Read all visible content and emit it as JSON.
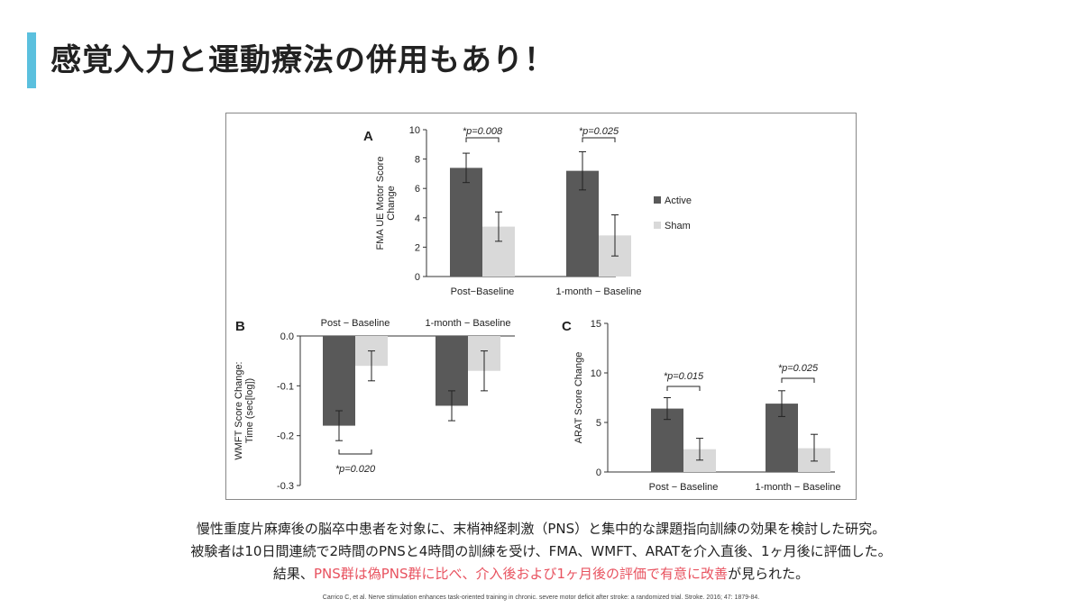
{
  "slide": {
    "title": "感覚入力と運動療法の併用もあり！",
    "accent_color": "#5bc0de",
    "caption_line1": "慢性重度片麻痺後の脳卒中患者を対象に、末梢神経刺激（PNS）と集中的な課題指向訓練の効果を検討した研究。",
    "caption_line2": "被験者は10日間連続で2時間のPNSと4時間の訓練を受け、FMA、WMFT、ARATを介入直後、1ヶ月後に評価した。",
    "caption_line3_before": "結果、",
    "caption_line3_highlight": "PNS群は偽PNS群に比べ、介入後および1ヶ月後の評価で有意に改善",
    "caption_line3_after": "が見られた。",
    "highlight_color": "#e8525f",
    "citation": "Carrico C, et al. Nerve stimulation enhances task-oriented training in chronic. severe motor deficit after stroke: a randomized trial. Stroke. 2016; 47: 1879-84."
  },
  "chart_data": [
    {
      "panel": "A",
      "type": "bar",
      "categories": [
        "Post−Baseline",
        "1-month − Baseline"
      ],
      "series": [
        {
          "name": "Active",
          "color": "#595959",
          "values": [
            7.4,
            7.2
          ],
          "error": [
            [
              6.4,
              8.4
            ],
            [
              5.9,
              8.5
            ]
          ]
        },
        {
          "name": "Sham",
          "color": "#d9d9d9",
          "values": [
            3.4,
            2.8
          ],
          "error": [
            [
              2.4,
              4.4
            ],
            [
              1.4,
              4.2
            ]
          ]
        }
      ],
      "ylabel": "FMA UE Motor Score Change",
      "ylim": [
        0,
        10
      ],
      "yticks": [
        "0",
        "2",
        "4",
        "6",
        "8",
        "10"
      ],
      "annotations": [
        "*p=0.008",
        "*p=0.025"
      ],
      "legend": "right"
    },
    {
      "panel": "B",
      "type": "bar",
      "categories": [
        "Post − Baseline",
        "1-month − Baseline"
      ],
      "series": [
        {
          "name": "Active",
          "color": "#595959",
          "values": [
            -0.18,
            -0.14
          ],
          "error": [
            [
              -0.21,
              -0.15
            ],
            [
              -0.17,
              -0.11
            ]
          ]
        },
        {
          "name": "Sham",
          "color": "#d9d9d9",
          "values": [
            -0.06,
            -0.07
          ],
          "error": [
            [
              -0.09,
              -0.03
            ],
            [
              -0.11,
              -0.03
            ]
          ]
        }
      ],
      "ylabel": "WMFT Score Change: Time (sec[log])",
      "ylim": [
        -0.3,
        0
      ],
      "yticks": [
        "0.0",
        "-0.1",
        "-0.2",
        "-0.3"
      ],
      "annotations": [
        "*p=0.020"
      ]
    },
    {
      "panel": "C",
      "type": "bar",
      "categories": [
        "Post − Baseline",
        "1-month − Baseline"
      ],
      "series": [
        {
          "name": "Active",
          "color": "#595959",
          "values": [
            6.4,
            6.9
          ],
          "error": [
            [
              5.3,
              7.5
            ],
            [
              5.6,
              8.2
            ]
          ]
        },
        {
          "name": "Sham",
          "color": "#d9d9d9",
          "values": [
            2.3,
            2.4
          ],
          "error": [
            [
              1.2,
              3.4
            ],
            [
              1.1,
              3.8
            ]
          ]
        }
      ],
      "ylabel": "ARAT Score Change",
      "ylim": [
        0,
        15
      ],
      "yticks": [
        "0",
        "5",
        "10",
        "15"
      ],
      "annotations": [
        "*p=0.015",
        "*p=0.025"
      ]
    }
  ]
}
